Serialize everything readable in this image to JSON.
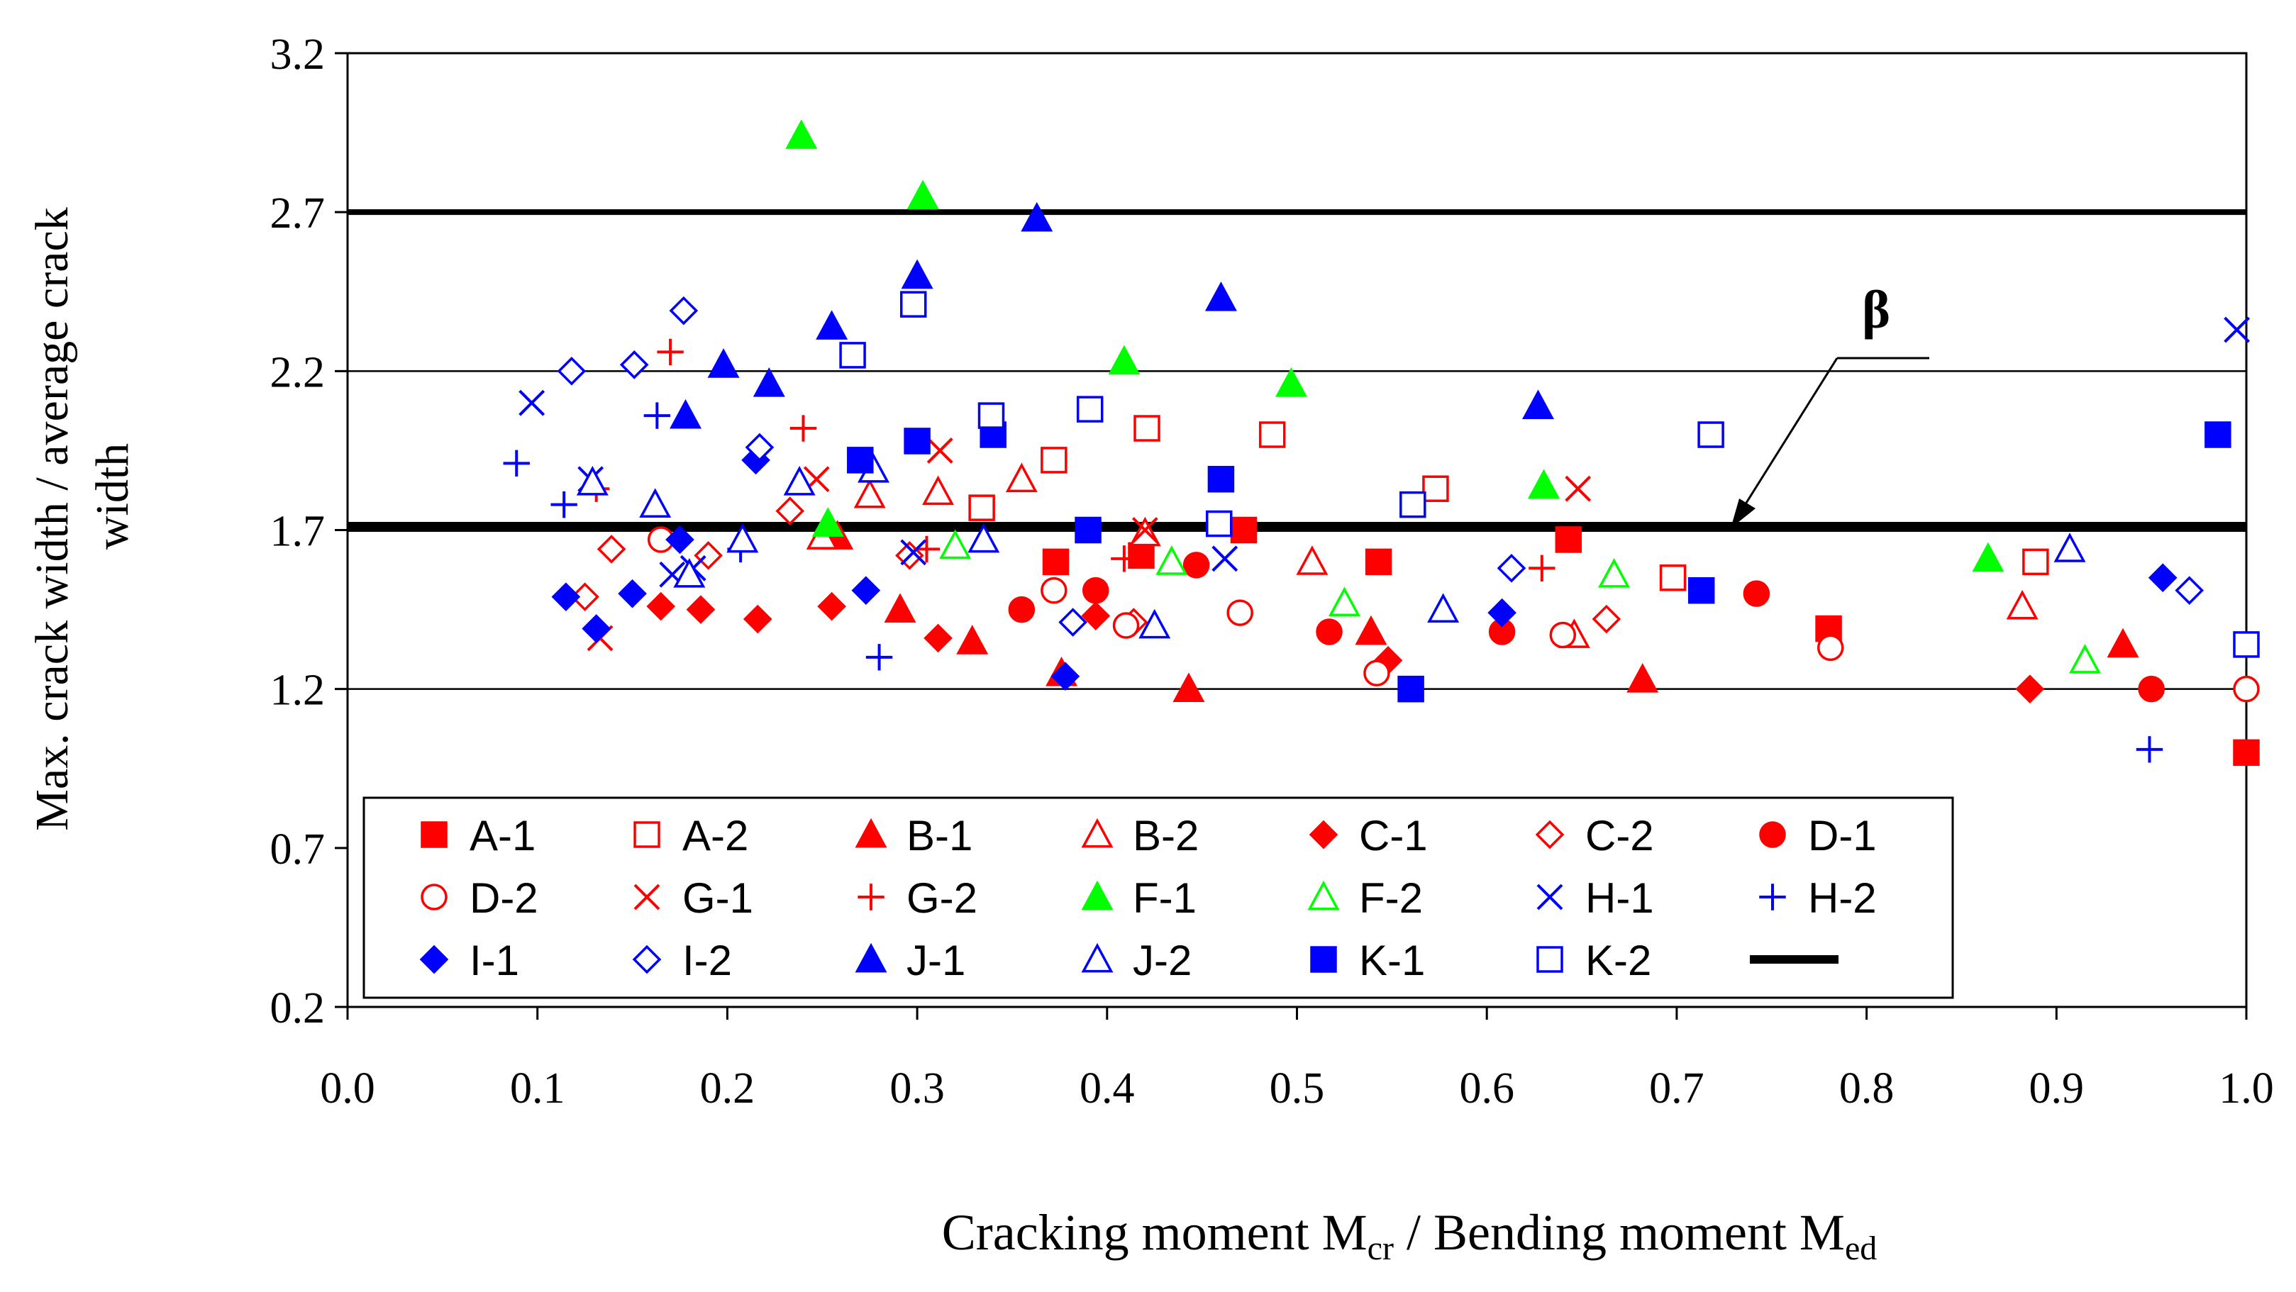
{
  "chart_data": {
    "type": "scatter",
    "title": "",
    "xlabel_main": "Cracking moment M",
    "xlabel_sub1": "cr",
    "xlabel_mid": " / Bending moment M",
    "xlabel_sub2": "ed",
    "ylabel_line1": "Max. crack width / average crack",
    "ylabel_line2": "width",
    "xlim": [
      0.0,
      1.0
    ],
    "ylim": [
      0.2,
      3.2
    ],
    "xticks": [
      "0.0",
      "0.1",
      "0.2",
      "0.3",
      "0.4",
      "0.5",
      "0.6",
      "0.7",
      "0.8",
      "0.9",
      "1.0"
    ],
    "yticks": [
      "0.2",
      "0.7",
      "1.2",
      "1.7",
      "2.2",
      "2.7",
      "3.2"
    ],
    "gridlines_y": [
      1.2,
      1.7,
      2.2,
      2.7,
      3.2
    ],
    "reference_lines": [
      {
        "name": "upper-bound",
        "y": 2.7
      },
      {
        "name": "beta",
        "y": 1.71
      }
    ],
    "beta_label": "β",
    "beta_line_legend": "",
    "legend_position": "lower-center",
    "series": [
      {
        "name": "A-1",
        "marker": "square",
        "fill": true,
        "color": "#ff0000",
        "x": [
          0.373,
          0.418,
          0.472,
          0.543,
          0.643,
          0.78,
          1.0
        ],
        "y": [
          1.6,
          1.62,
          1.7,
          1.6,
          1.67,
          1.39,
          1.0
        ]
      },
      {
        "name": "A-2",
        "marker": "square",
        "fill": false,
        "color": "#ff0000",
        "x": [
          0.334,
          0.372,
          0.421,
          0.487,
          0.573,
          0.698,
          0.889
        ],
        "y": [
          1.77,
          1.92,
          2.02,
          2.0,
          1.83,
          1.55,
          1.6
        ]
      },
      {
        "name": "B-1",
        "marker": "triangle",
        "fill": true,
        "color": "#ff0000",
        "x": [
          0.258,
          0.291,
          0.329,
          0.376,
          0.443,
          0.539,
          0.682,
          0.935
        ],
        "y": [
          1.68,
          1.45,
          1.35,
          1.25,
          1.2,
          1.38,
          1.23,
          1.34
        ]
      },
      {
        "name": "B-2",
        "marker": "triangle",
        "fill": false,
        "color": "#ff0000",
        "x": [
          0.25,
          0.275,
          0.311,
          0.355,
          0.42,
          0.508,
          0.646,
          0.882
        ],
        "y": [
          1.68,
          1.81,
          1.82,
          1.86,
          1.69,
          1.6,
          1.37,
          1.46
        ]
      },
      {
        "name": "C-1",
        "marker": "diamond",
        "fill": true,
        "color": "#ff0000",
        "x": [
          0.165,
          0.186,
          0.216,
          0.255,
          0.311,
          0.394,
          0.548,
          0.886
        ],
        "y": [
          1.46,
          1.45,
          1.42,
          1.46,
          1.36,
          1.43,
          1.29,
          1.2
        ]
      },
      {
        "name": "C-2",
        "marker": "diamond",
        "fill": false,
        "color": "#ff0000",
        "x": [
          0.125,
          0.139,
          0.19,
          0.233,
          0.296,
          0.414,
          0.663
        ],
        "y": [
          1.49,
          1.64,
          1.62,
          1.76,
          1.62,
          1.41,
          1.42
        ]
      },
      {
        "name": "D-1",
        "marker": "circle",
        "fill": true,
        "color": "#ff0000",
        "x": [
          0.355,
          0.394,
          0.447,
          0.517,
          0.608,
          0.742,
          0.95
        ],
        "y": [
          1.45,
          1.51,
          1.59,
          1.38,
          1.38,
          1.5,
          1.2
        ]
      },
      {
        "name": "D-2",
        "marker": "circle",
        "fill": false,
        "color": "#ff0000",
        "x": [
          0.165,
          0.372,
          0.41,
          0.47,
          0.542,
          0.64,
          0.781,
          1.0
        ],
        "y": [
          1.67,
          1.51,
          1.4,
          1.44,
          1.25,
          1.37,
          1.33,
          1.2
        ]
      },
      {
        "name": "G-1",
        "marker": "x",
        "fill": false,
        "color": "#ff0000",
        "x": [
          0.133,
          0.247,
          0.312,
          0.42,
          0.648
        ],
        "y": [
          1.36,
          1.86,
          1.95,
          1.7,
          1.83
        ]
      },
      {
        "name": "G-2",
        "marker": "plus",
        "fill": false,
        "color": "#ff0000",
        "x": [
          0.131,
          0.17,
          0.24,
          0.305,
          0.409,
          0.629
        ],
        "y": [
          1.83,
          2.26,
          2.02,
          1.64,
          1.61,
          1.58
        ]
      },
      {
        "name": "F-1",
        "marker": "triangle",
        "fill": true,
        "color": "#00ff00",
        "x": [
          0.239,
          0.253,
          0.303,
          0.409,
          0.497,
          0.63,
          0.864
        ],
        "y": [
          2.94,
          1.72,
          2.75,
          2.23,
          2.16,
          1.84,
          1.61
        ]
      },
      {
        "name": "F-2",
        "marker": "triangle",
        "fill": false,
        "color": "#00ff00",
        "x": [
          0.32,
          0.434,
          0.525,
          0.667,
          0.915
        ],
        "y": [
          1.65,
          1.6,
          1.47,
          1.56,
          1.29
        ]
      },
      {
        "name": "H-1",
        "marker": "x",
        "fill": false,
        "color": "#0000ff",
        "x": [
          0.097,
          0.128,
          0.171,
          0.182,
          0.298,
          0.462,
          0.995
        ],
        "y": [
          2.1,
          1.86,
          1.56,
          1.58,
          1.63,
          1.61,
          2.33
        ]
      },
      {
        "name": "H-2",
        "marker": "plus",
        "fill": false,
        "color": "#0000ff",
        "x": [
          0.089,
          0.114,
          0.163,
          0.207,
          0.28,
          0.949
        ],
        "y": [
          1.91,
          1.78,
          2.06,
          1.64,
          1.3,
          1.01
        ]
      },
      {
        "name": "I-1",
        "marker": "diamond",
        "fill": true,
        "color": "#0000ff",
        "x": [
          0.115,
          0.131,
          0.15,
          0.175,
          0.215,
          0.273,
          0.378,
          0.608,
          0.956
        ],
        "y": [
          1.49,
          1.39,
          1.5,
          1.67,
          1.92,
          1.51,
          1.24,
          1.44,
          1.55
        ]
      },
      {
        "name": "I-2",
        "marker": "diamond",
        "fill": false,
        "color": "#0000ff",
        "x": [
          0.118,
          0.151,
          0.177,
          0.217,
          0.382,
          0.613,
          0.97
        ],
        "y": [
          2.2,
          2.22,
          2.39,
          1.96,
          1.41,
          1.58,
          1.51
        ]
      },
      {
        "name": "J-1",
        "marker": "triangle",
        "fill": true,
        "color": "#0000ff",
        "x": [
          0.178,
          0.198,
          0.222,
          0.255,
          0.3,
          0.363,
          0.46,
          0.627
        ],
        "y": [
          2.06,
          2.22,
          2.16,
          2.34,
          2.5,
          2.68,
          2.43,
          2.09
        ]
      },
      {
        "name": "J-2",
        "marker": "triangle",
        "fill": false,
        "color": "#0000ff",
        "x": [
          0.129,
          0.162,
          0.18,
          0.208,
          0.238,
          0.277,
          0.335,
          0.425,
          0.577,
          0.907
        ],
        "y": [
          1.85,
          1.78,
          1.56,
          1.67,
          1.85,
          1.89,
          1.67,
          1.4,
          1.45,
          1.64
        ]
      },
      {
        "name": "K-1",
        "marker": "square",
        "fill": true,
        "color": "#0000ff",
        "x": [
          0.27,
          0.3,
          0.34,
          0.39,
          0.46,
          0.56,
          0.713,
          0.985
        ],
        "y": [
          1.92,
          1.98,
          2.0,
          1.7,
          1.86,
          1.2,
          1.51,
          2.0
        ]
      },
      {
        "name": "K-2",
        "marker": "square",
        "fill": false,
        "color": "#0000ff",
        "x": [
          0.266,
          0.298,
          0.339,
          0.391,
          0.459,
          0.561,
          0.718,
          1.0
        ],
        "y": [
          2.25,
          2.41,
          2.06,
          2.08,
          1.72,
          1.78,
          2.0,
          1.34
        ]
      }
    ]
  }
}
